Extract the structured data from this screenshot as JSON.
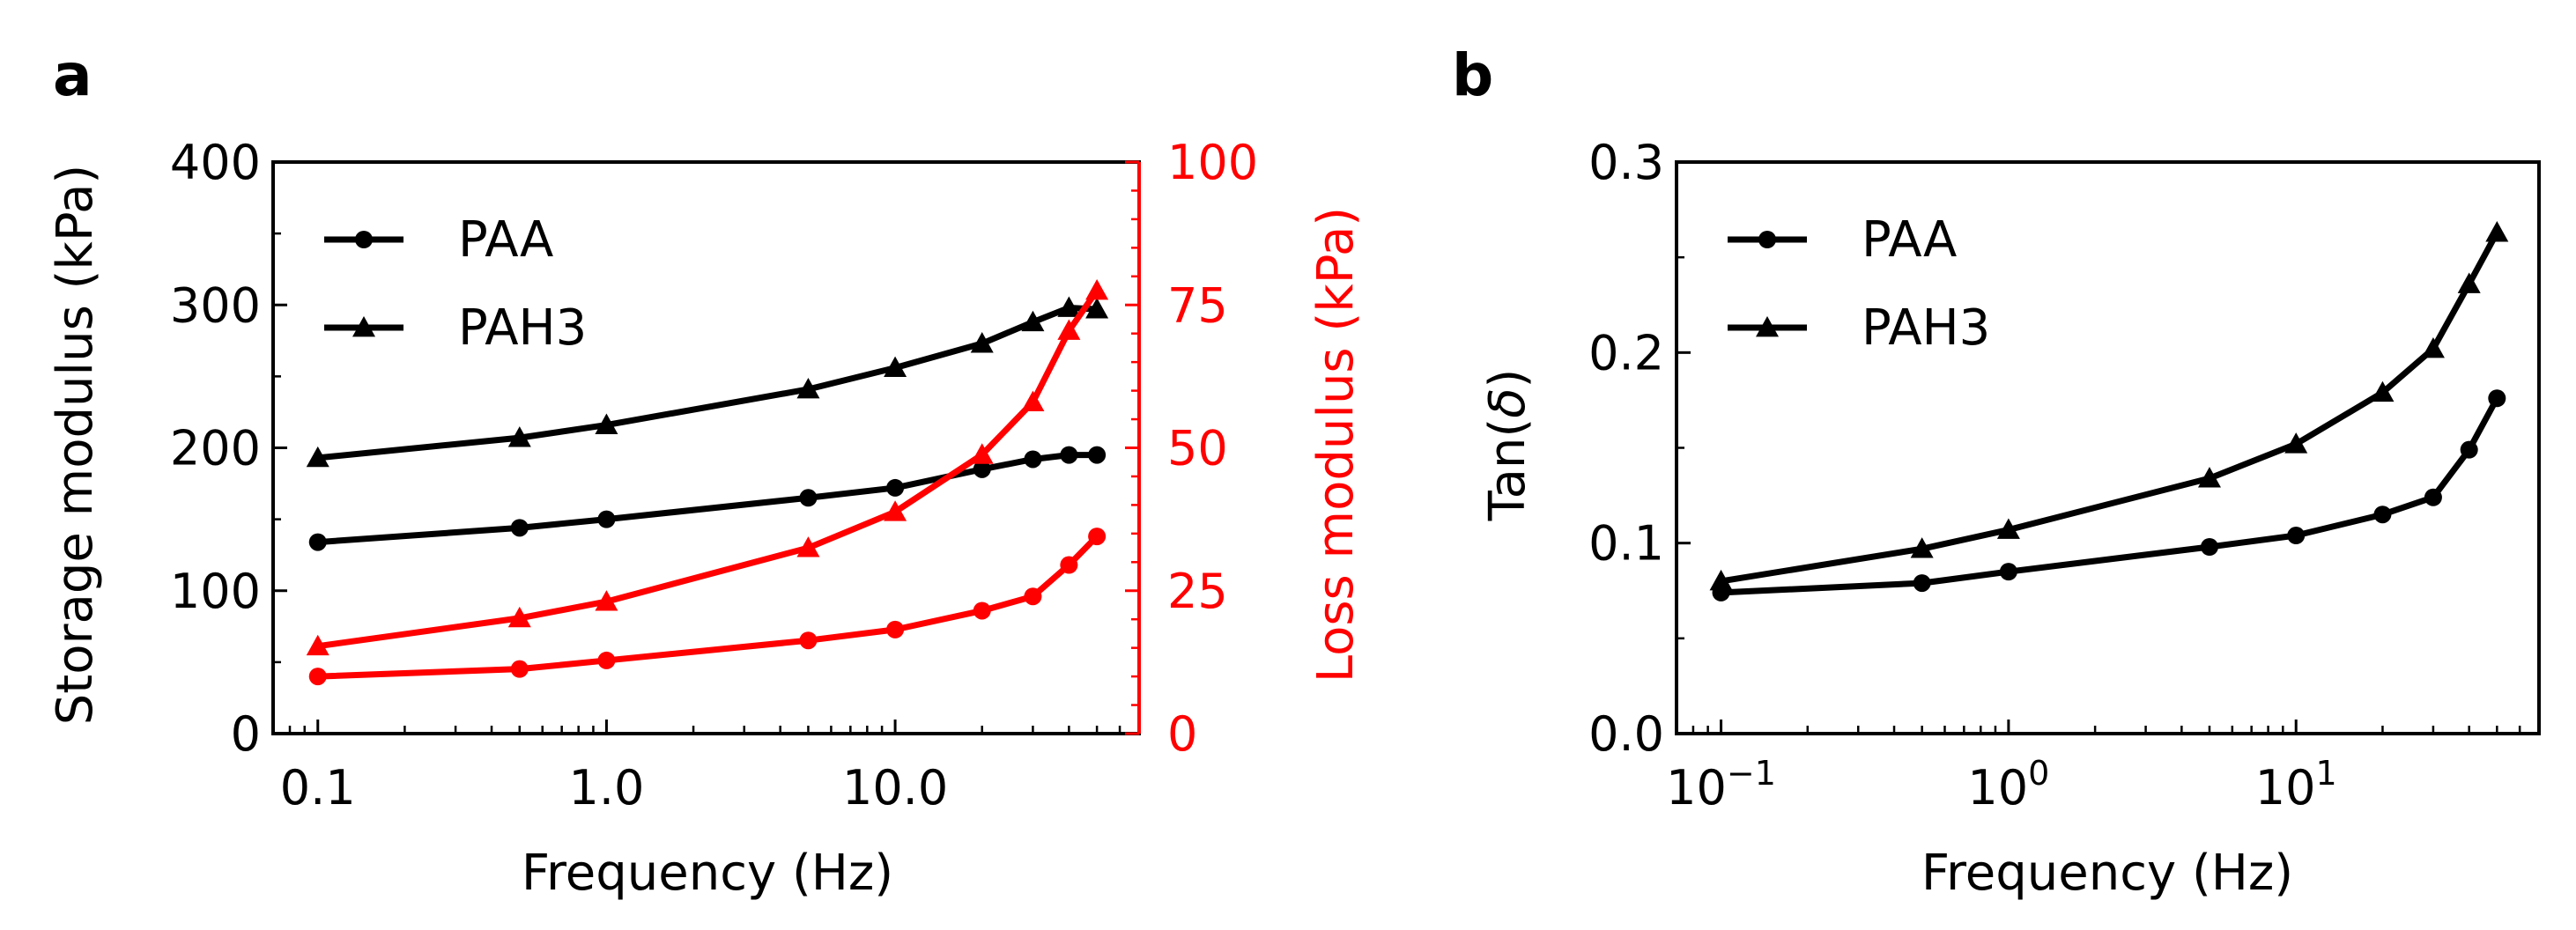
{
  "colors": {
    "storage": "#000000",
    "loss": "#ff0000"
  },
  "chart_data": [
    {
      "panel_label": "a",
      "type": "line",
      "xscale": "log",
      "xlabel": "Frequency (Hz)",
      "ylabel": "Storage modulus (kPa)",
      "y2label": "Loss modulus (kPa)",
      "xlim": [
        0.07,
        70
      ],
      "ylim": [
        0,
        400
      ],
      "y2lim": [
        0,
        100
      ],
      "xticks": [
        0.1,
        1,
        10
      ],
      "xtick_labels": [
        "0.1",
        "1.0",
        "10.0"
      ],
      "yticks": [
        0,
        100,
        200,
        300,
        400
      ],
      "ytick_labels": [
        "0",
        "100",
        "200",
        "300",
        "400"
      ],
      "y2ticks": [
        0,
        25,
        50,
        75,
        100
      ],
      "y2tick_labels": [
        "0",
        "25",
        "50",
        "75",
        "100"
      ],
      "legend": {
        "location": "upper-left",
        "entries": [
          "PAA",
          "PAH3"
        ]
      },
      "series": [
        {
          "name": "PAA",
          "axis": "left",
          "marker": "circle",
          "color": "#000000",
          "x": [
            0.1,
            0.5,
            1,
            5,
            10,
            20,
            30,
            40,
            50
          ],
          "values": [
            134,
            144,
            150,
            165,
            172,
            185,
            192,
            195,
            195
          ]
        },
        {
          "name": "PAH3",
          "axis": "left",
          "marker": "triangle",
          "color": "#000000",
          "x": [
            0.1,
            0.5,
            1,
            5,
            10,
            20,
            30,
            40,
            50
          ],
          "values": [
            193,
            207,
            216,
            241,
            256,
            273,
            288,
            298,
            297
          ]
        },
        {
          "name": "PAA",
          "axis": "right",
          "marker": "circle",
          "color": "#ff0000",
          "x": [
            0.1,
            0.5,
            1,
            5,
            10,
            20,
            30,
            40,
            50
          ],
          "values": [
            10,
            11.3,
            12.8,
            16.3,
            18.2,
            21.5,
            24,
            29.5,
            34.5
          ]
        },
        {
          "name": "PAH3",
          "axis": "right",
          "marker": "triangle",
          "color": "#ff0000",
          "x": [
            0.1,
            0.5,
            1,
            5,
            10,
            20,
            30,
            40,
            50
          ],
          "values": [
            15.3,
            20.2,
            23.1,
            32.5,
            38.8,
            48.8,
            58,
            70.5,
            77.5
          ]
        }
      ]
    },
    {
      "panel_label": "b",
      "type": "line",
      "xscale": "log",
      "xlabel": "Frequency (Hz)",
      "ylabel_prefix": "Tan(",
      "ylabel_symbol": "δ",
      "ylabel_suffix": ")",
      "xlim": [
        0.07,
        70
      ],
      "ylim": [
        0,
        0.3
      ],
      "xticks": [
        0.1,
        1,
        10
      ],
      "xtick_base": "10",
      "xtick_exponents": [
        "−1",
        "0",
        "1"
      ],
      "yticks": [
        0,
        0.1,
        0.2,
        0.3
      ],
      "ytick_labels": [
        "0.0",
        "0.1",
        "0.2",
        "0.3"
      ],
      "legend": {
        "location": "upper-left",
        "entries": [
          "PAA",
          "PAH3"
        ]
      },
      "series": [
        {
          "name": "PAA",
          "marker": "circle",
          "color": "#000000",
          "x": [
            0.1,
            0.5,
            1,
            5,
            10,
            20,
            30,
            40,
            50
          ],
          "values": [
            0.074,
            0.079,
            0.085,
            0.098,
            0.104,
            0.115,
            0.124,
            0.149,
            0.176
          ]
        },
        {
          "name": "PAH3",
          "marker": "triangle",
          "color": "#000000",
          "x": [
            0.1,
            0.5,
            1,
            5,
            10,
            20,
            30,
            40,
            50
          ],
          "values": [
            0.08,
            0.097,
            0.107,
            0.134,
            0.152,
            0.179,
            0.202,
            0.236,
            0.263
          ]
        }
      ]
    }
  ]
}
